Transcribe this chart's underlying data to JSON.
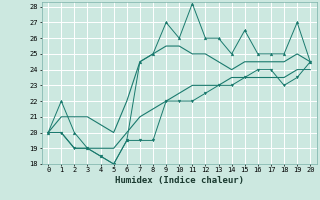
{
  "xlabel": "Humidex (Indice chaleur)",
  "bg_color": "#cce8e0",
  "grid_color": "#ffffff",
  "line_color": "#1a7a6e",
  "xlim": [
    -0.5,
    20.5
  ],
  "ylim": [
    18,
    28.3
  ],
  "xticks": [
    0,
    1,
    2,
    3,
    4,
    5,
    6,
    7,
    8,
    9,
    10,
    11,
    12,
    13,
    14,
    15,
    16,
    17,
    18,
    19,
    20
  ],
  "yticks": [
    18,
    19,
    20,
    21,
    22,
    23,
    24,
    25,
    26,
    27,
    28
  ],
  "series_max": [
    20,
    22,
    20,
    19,
    18.5,
    18,
    19.5,
    24.5,
    25,
    27,
    26,
    28.2,
    26,
    26,
    25,
    26.5,
    25,
    25,
    25,
    27,
    24.5
  ],
  "series_avghigh": [
    20,
    21,
    21,
    21,
    20.5,
    20,
    22,
    24.5,
    25,
    25.5,
    25.5,
    25,
    25,
    24.5,
    24,
    24.5,
    24.5,
    24.5,
    24.5,
    25,
    24.5
  ],
  "series_avglow": [
    20,
    20,
    19,
    19,
    19,
    19,
    20,
    21,
    21.5,
    22,
    22.5,
    23,
    23,
    23,
    23.5,
    23.5,
    23.5,
    23.5,
    23.5,
    24,
    24
  ],
  "series_min": [
    20,
    20,
    19,
    19,
    18.5,
    18,
    19.5,
    19.5,
    19.5,
    22,
    22,
    22,
    22.5,
    23,
    23,
    23.5,
    24,
    24,
    23,
    23.5,
    24.5
  ]
}
